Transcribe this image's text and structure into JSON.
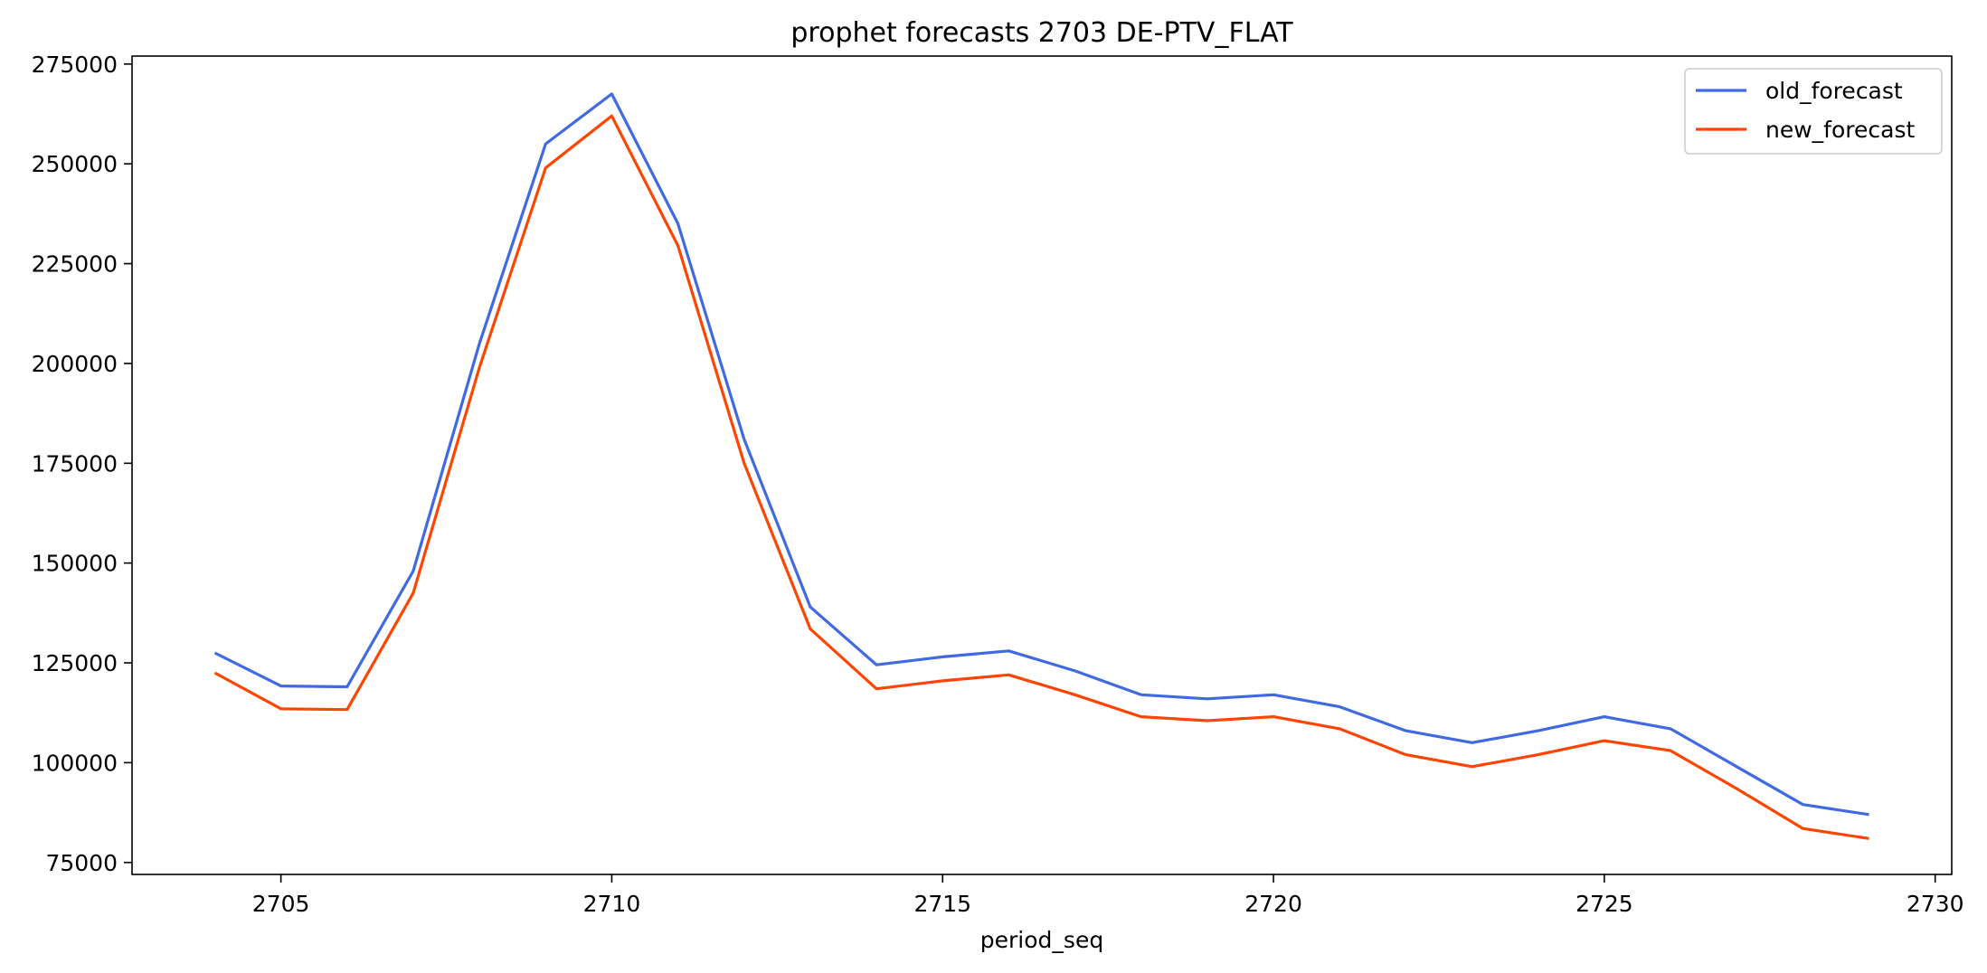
{
  "chart_data": {
    "type": "line",
    "title": "prophet forecasts 2703 DE-PTV_FLAT",
    "xlabel": "period_seq",
    "ylabel": "",
    "x": [
      2704,
      2705,
      2706,
      2707,
      2708,
      2709,
      2710,
      2711,
      2712,
      2713,
      2714,
      2715,
      2716,
      2717,
      2718,
      2719,
      2720,
      2721,
      2722,
      2723,
      2724,
      2725,
      2726,
      2727,
      2728,
      2729
    ],
    "series": [
      {
        "name": "old_forecast",
        "color": "#4169e1",
        "values": [
          127500,
          119200,
          119000,
          148000,
          205000,
          255000,
          267500,
          235000,
          181000,
          139000,
          124500,
          126500,
          128000,
          123000,
          117000,
          116000,
          117000,
          114000,
          108000,
          105000,
          108000,
          111500,
          108500,
          99000,
          89500,
          87000
        ]
      },
      {
        "name": "new_forecast",
        "color": "#ff4500",
        "values": [
          122500,
          113500,
          113300,
          142500,
          199000,
          249000,
          262000,
          229500,
          175000,
          133500,
          118500,
          120500,
          122000,
          117000,
          111500,
          110500,
          111500,
          108500,
          102000,
          99000,
          102000,
          105500,
          103000,
          93500,
          83500,
          81000
        ]
      }
    ],
    "xlim": [
      2702.75,
      2730.25
    ],
    "ylim": [
      72000,
      277000
    ],
    "xticks": [
      2705,
      2710,
      2715,
      2720,
      2725,
      2730
    ],
    "yticks": [
      75000,
      100000,
      125000,
      150000,
      175000,
      200000,
      225000,
      250000,
      275000
    ],
    "legend_position": "top-right",
    "grid": false
  }
}
